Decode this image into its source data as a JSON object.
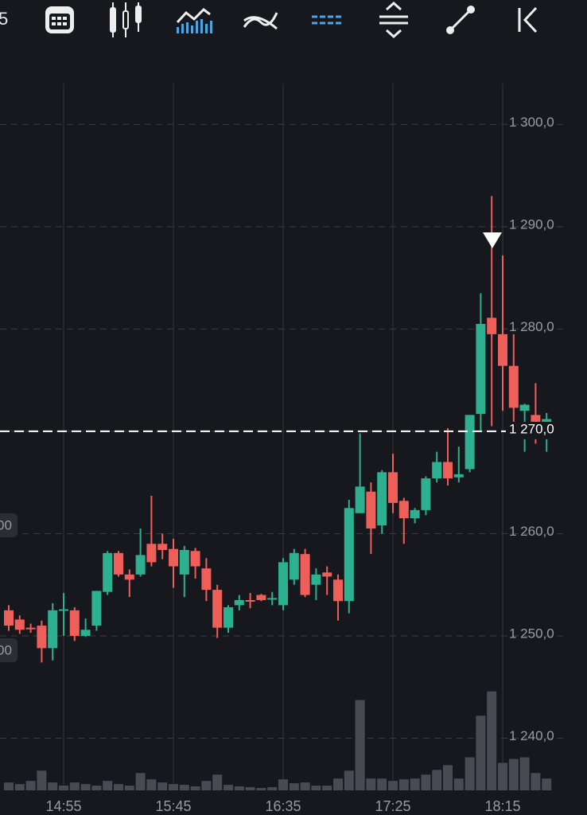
{
  "toolbar": {
    "partial_label": "5"
  },
  "side_labels": [
    "00",
    "00"
  ],
  "chart_data": {
    "type": "candlestick",
    "categories": [
      null,
      null,
      null,
      null,
      null,
      "14:55",
      null,
      null,
      null,
      null,
      null,
      null,
      null,
      null,
      null,
      "15:45",
      null,
      null,
      null,
      null,
      null,
      null,
      null,
      null,
      null,
      "16:35",
      null,
      null,
      null,
      null,
      null,
      null,
      null,
      null,
      null,
      "17:25",
      null,
      null,
      null,
      null,
      null,
      null,
      null,
      null,
      null,
      "18:15",
      null,
      null,
      null,
      null
    ],
    "open": [
      1252.5,
      1251.6,
      1250.8,
      1251,
      1248.8,
      1252.5,
      1252.5,
      1250,
      1251,
      1254.3,
      1258.1,
      1256,
      1256,
      1259,
      1259,
      1258.5,
      1256,
      1258.3,
      1256.6,
      1254.5,
      1250.8,
      1253,
      1253.5,
      1254,
      1253.6,
      1253,
      1255.5,
      1258,
      1255,
      1256.2,
      1255.5,
      1253.4,
      1262,
      1264.1,
      1260.8,
      1266,
      1263.2,
      1261.5,
      1262.3,
      1265.4,
      1267,
      1265.5,
      1266.3,
      1271.7,
      1281.1,
      1279.5,
      1276.4,
      1272,
      1271.6,
      1269.6
    ],
    "high": [
      1253,
      1252,
      1251.2,
      1251.5,
      1253.2,
      1254.2,
      1252.8,
      1251.7,
      1254.4,
      1258.3,
      1258.3,
      1256.5,
      1260.5,
      1263.7,
      1260,
      1259.5,
      1258.8,
      1258.6,
      1257.6,
      1255,
      1253,
      1254,
      1254.2,
      1254.1,
      1254.3,
      1257.6,
      1258.5,
      1258.5,
      1256.6,
      1256.8,
      1256,
      1263.3,
      1269.8,
      1265,
      1266.2,
      1267.8,
      1263.5,
      1262.5,
      1265.6,
      1268,
      1270.3,
      1268.5,
      1271.6,
      1283.5,
      1293,
      1287.2,
      1279.5,
      1272.7,
      1274.7,
      1271.8
    ],
    "low": [
      1250.5,
      1250.2,
      1250.3,
      1247.4,
      1247.6,
      1250,
      1249.5,
      1249.9,
      1250.5,
      1254,
      1255.8,
      1253.8,
      1255.8,
      1256.8,
      1257.5,
      1254.7,
      1253.8,
      1255.6,
      1253.4,
      1249.8,
      1250.3,
      1252.5,
      1252.7,
      1253.4,
      1253,
      1252.5,
      1255,
      1253.8,
      1253.5,
      1254,
      1251.5,
      1252.2,
      1262,
      1258,
      1260,
      1262,
      1259,
      1261,
      1261.8,
      1265,
      1264.7,
      1265,
      1266,
      1270,
      1270.5,
      1272,
      1269.5,
      1268,
      1268.8,
      1268
    ],
    "close": [
      1251,
      1250.6,
      1250.7,
      1248.8,
      1252.5,
      1252.6,
      1250,
      1250.6,
      1254.4,
      1258.1,
      1256,
      1255.5,
      1257.9,
      1257.2,
      1258.4,
      1256.8,
      1258.4,
      1256.8,
      1254.5,
      1250.8,
      1252.8,
      1253.5,
      1253.4,
      1253.5,
      1253.7,
      1257.2,
      1258.1,
      1254,
      1256,
      1255.8,
      1253.4,
      1262.5,
      1264.6,
      1260.5,
      1266,
      1263,
      1261.5,
      1262.3,
      1265.4,
      1267,
      1265.4,
      1265.8,
      1271.6,
      1280.5,
      1279.5,
      1276.4,
      1272.3,
      1272.6,
      1269.6,
      1271.2
    ],
    "volume": [
      10,
      8,
      12,
      25,
      10,
      6,
      10,
      8,
      6,
      12,
      8,
      6,
      22,
      14,
      10,
      8,
      7,
      5,
      12,
      20,
      7,
      5,
      4,
      3,
      4,
      14,
      9,
      10,
      6,
      6,
      15,
      25,
      115,
      15,
      15,
      12,
      14,
      15,
      20,
      26,
      32,
      15,
      42,
      95,
      126,
      35,
      40,
      42,
      22,
      15
    ],
    "vlim": [
      0,
      900
    ],
    "up_color": "#2db08f",
    "down_color": "#ef5f5a",
    "volume_color": "#4a4a55",
    "ylim": [
      1234.9,
      1304.0
    ],
    "yticks": [
      {
        "value": 1240,
        "label": "1 240,0"
      },
      {
        "value": 1250,
        "label": "1 250,0"
      },
      {
        "value": 1260,
        "label": "1 260,0"
      },
      {
        "value": 1270,
        "label": "1 270,0"
      },
      {
        "value": 1280,
        "label": "1 280,0"
      },
      {
        "value": 1290,
        "label": "1 290,0"
      },
      {
        "value": 1300,
        "label": "1 300,0"
      }
    ],
    "price_line": {
      "value": 1270,
      "label": "1 270,0"
    },
    "grid": true
  }
}
